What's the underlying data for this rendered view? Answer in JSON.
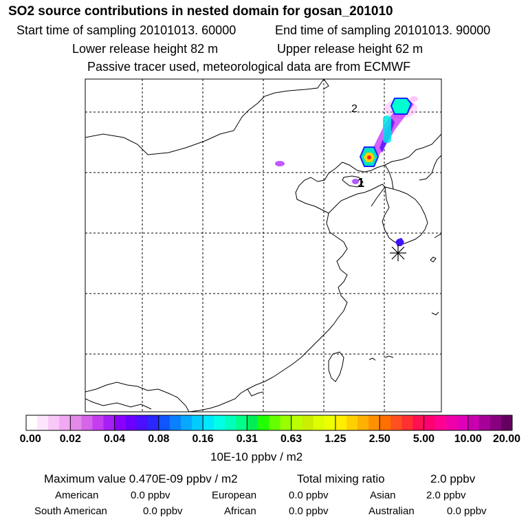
{
  "header": {
    "title": "SO2 source contributions in nested domain for gosan_201010",
    "start_time": "Start time of sampling 20101013. 60000",
    "end_time": "End time of sampling 20101013. 90000",
    "lower_release": "Lower release height   82 m",
    "upper_release": "Upper release height   62 m",
    "passive_tracer": "Passive tracer used, meteorological data are from ECMWF"
  },
  "chart_data": {
    "type": "heatmap",
    "title": "SO2 source contributions in nested domain for gosan_201010",
    "map_labels": [
      "1",
      "2"
    ],
    "receptor_marker": "star",
    "colorbar": {
      "unit": "10E-10 ppbv / m2",
      "ticks": [
        "0.00",
        "0.02",
        "0.04",
        "0.08",
        "0.16",
        "0.31",
        "0.63",
        "1.25",
        "2.50",
        "5.00",
        "10.00",
        "20.00"
      ],
      "colors": [
        [
          "#ffffff",
          "#fde6fd",
          "#f8c8f8",
          "#f2a8f2"
        ],
        [
          "#e38ae8",
          "#d565ea",
          "#c43ef0",
          "#a81ff6"
        ],
        [
          "#8a00ff",
          "#6a00ff",
          "#4a10ff",
          "#2a28ff"
        ],
        [
          "#1055ff",
          "#0a80ff",
          "#08a8ff",
          "#00ccff"
        ],
        [
          "#00e8ff",
          "#00ffe6",
          "#00ffbb",
          "#00ff88"
        ],
        [
          "#00ee55",
          "#22ff00",
          "#66ff00",
          "#99ff00"
        ],
        [
          "#bbff00",
          "#ccee00",
          "#ddff00",
          "#eeff00"
        ],
        [
          "#ffee00",
          "#ffd000",
          "#ffb000",
          "#ff9000"
        ],
        [
          "#ff7000",
          "#ff5020",
          "#ff3030",
          "#ff1050"
        ],
        [
          "#ff0070",
          "#ff0090",
          "#f000a8",
          "#e000b8"
        ],
        [
          "#c800b0",
          "#a80098",
          "#880080",
          "#660060"
        ]
      ]
    }
  },
  "footer": {
    "maximum_value": "Maximum value  0.470E-09 ppbv / m2",
    "total_mixing_label": "Total mixing ratio",
    "total_mixing_value": "2.0 ppbv",
    "regions": [
      {
        "name": "American",
        "value": "0.0 ppbv"
      },
      {
        "name": "European",
        "value": "0.0 ppbv"
      },
      {
        "name": "Asian",
        "value": "2.0 ppbv"
      },
      {
        "name": "South American",
        "value": "0.0 ppbv"
      },
      {
        "name": "African",
        "value": "0.0 ppbv"
      },
      {
        "name": "Australian",
        "value": "0.0 ppbv"
      }
    ]
  }
}
